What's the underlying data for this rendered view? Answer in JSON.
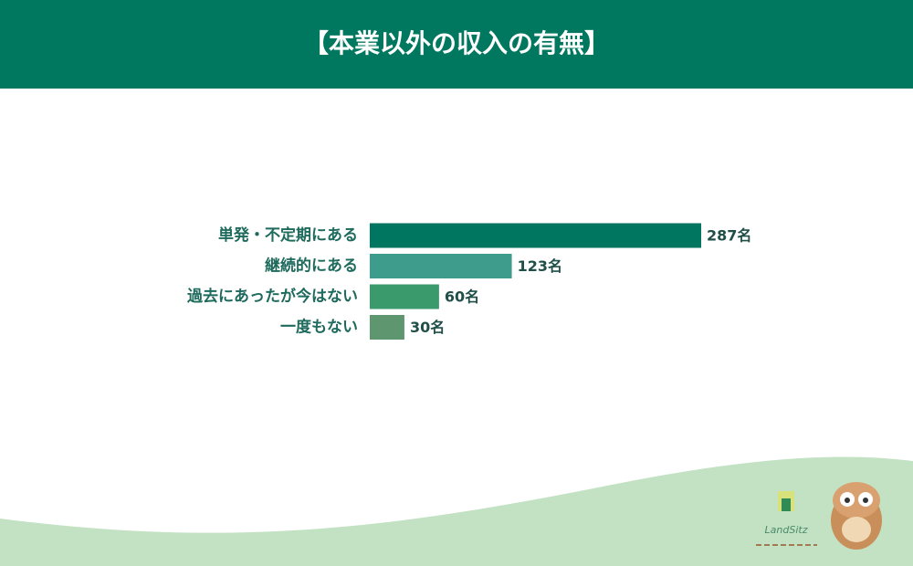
{
  "chart_data": {
    "type": "bar",
    "orientation": "horizontal",
    "title": "【本業以外の収入の有無】",
    "categories": [
      "単発・不定期にある",
      "継続的にある",
      "過去にあったが今はない",
      "一度もない"
    ],
    "values": [
      287,
      123,
      60,
      30
    ],
    "value_labels": [
      "287名",
      "123名",
      "60名",
      "30名"
    ],
    "colors": [
      "#00755f",
      "#3e9c8c",
      "#3a9a6c",
      "#5e9670"
    ]
  },
  "brand": "LandSitz"
}
